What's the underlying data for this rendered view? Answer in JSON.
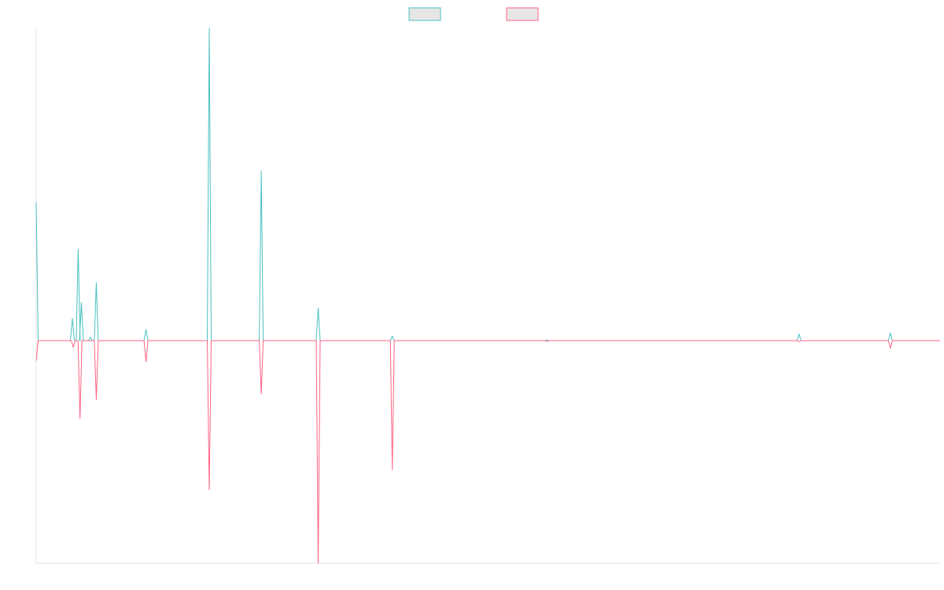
{
  "chart_data": {
    "type": "line",
    "title": "",
    "xlabel": "",
    "ylabel": "",
    "xlim": [
      0,
      1000
    ],
    "ylim": [
      -100,
      140
    ],
    "baseline": 0,
    "grid": false,
    "legend_position": "top-center",
    "series": [
      {
        "color": "#4bc0c0",
        "fill": "#e6e6e6",
        "peaks": [
          {
            "x": 0,
            "y": 62
          },
          {
            "x": 40,
            "y": 10
          },
          {
            "x": 46.5,
            "y": 41
          },
          {
            "x": 50,
            "y": 17
          },
          {
            "x": 60,
            "y": 1.5
          },
          {
            "x": 66.5,
            "y": 26
          },
          {
            "x": 121.5,
            "y": 5
          },
          {
            "x": 191.5,
            "y": 140
          },
          {
            "x": 249,
            "y": 76
          },
          {
            "x": 312,
            "y": 14.5
          },
          {
            "x": 394,
            "y": 2
          },
          {
            "x": 565,
            "y": 0.3
          },
          {
            "x": 844,
            "y": 3
          },
          {
            "x": 945,
            "y": 3.5
          }
        ]
      },
      {
        "color": "#ff6384",
        "fill": "#e6e6e6",
        "peaks": [
          {
            "x": 0,
            "y": -9
          },
          {
            "x": 41,
            "y": -3
          },
          {
            "x": 48.5,
            "y": -35
          },
          {
            "x": 66.5,
            "y": -26.5
          },
          {
            "x": 121.5,
            "y": -9.5
          },
          {
            "x": 191.5,
            "y": -67
          },
          {
            "x": 249,
            "y": -24
          },
          {
            "x": 312,
            "y": -100
          },
          {
            "x": 394,
            "y": -58
          },
          {
            "x": 565,
            "y": -0.3
          },
          {
            "x": 844,
            "y": -0.5
          },
          {
            "x": 945,
            "y": -3.5
          }
        ]
      }
    ]
  }
}
